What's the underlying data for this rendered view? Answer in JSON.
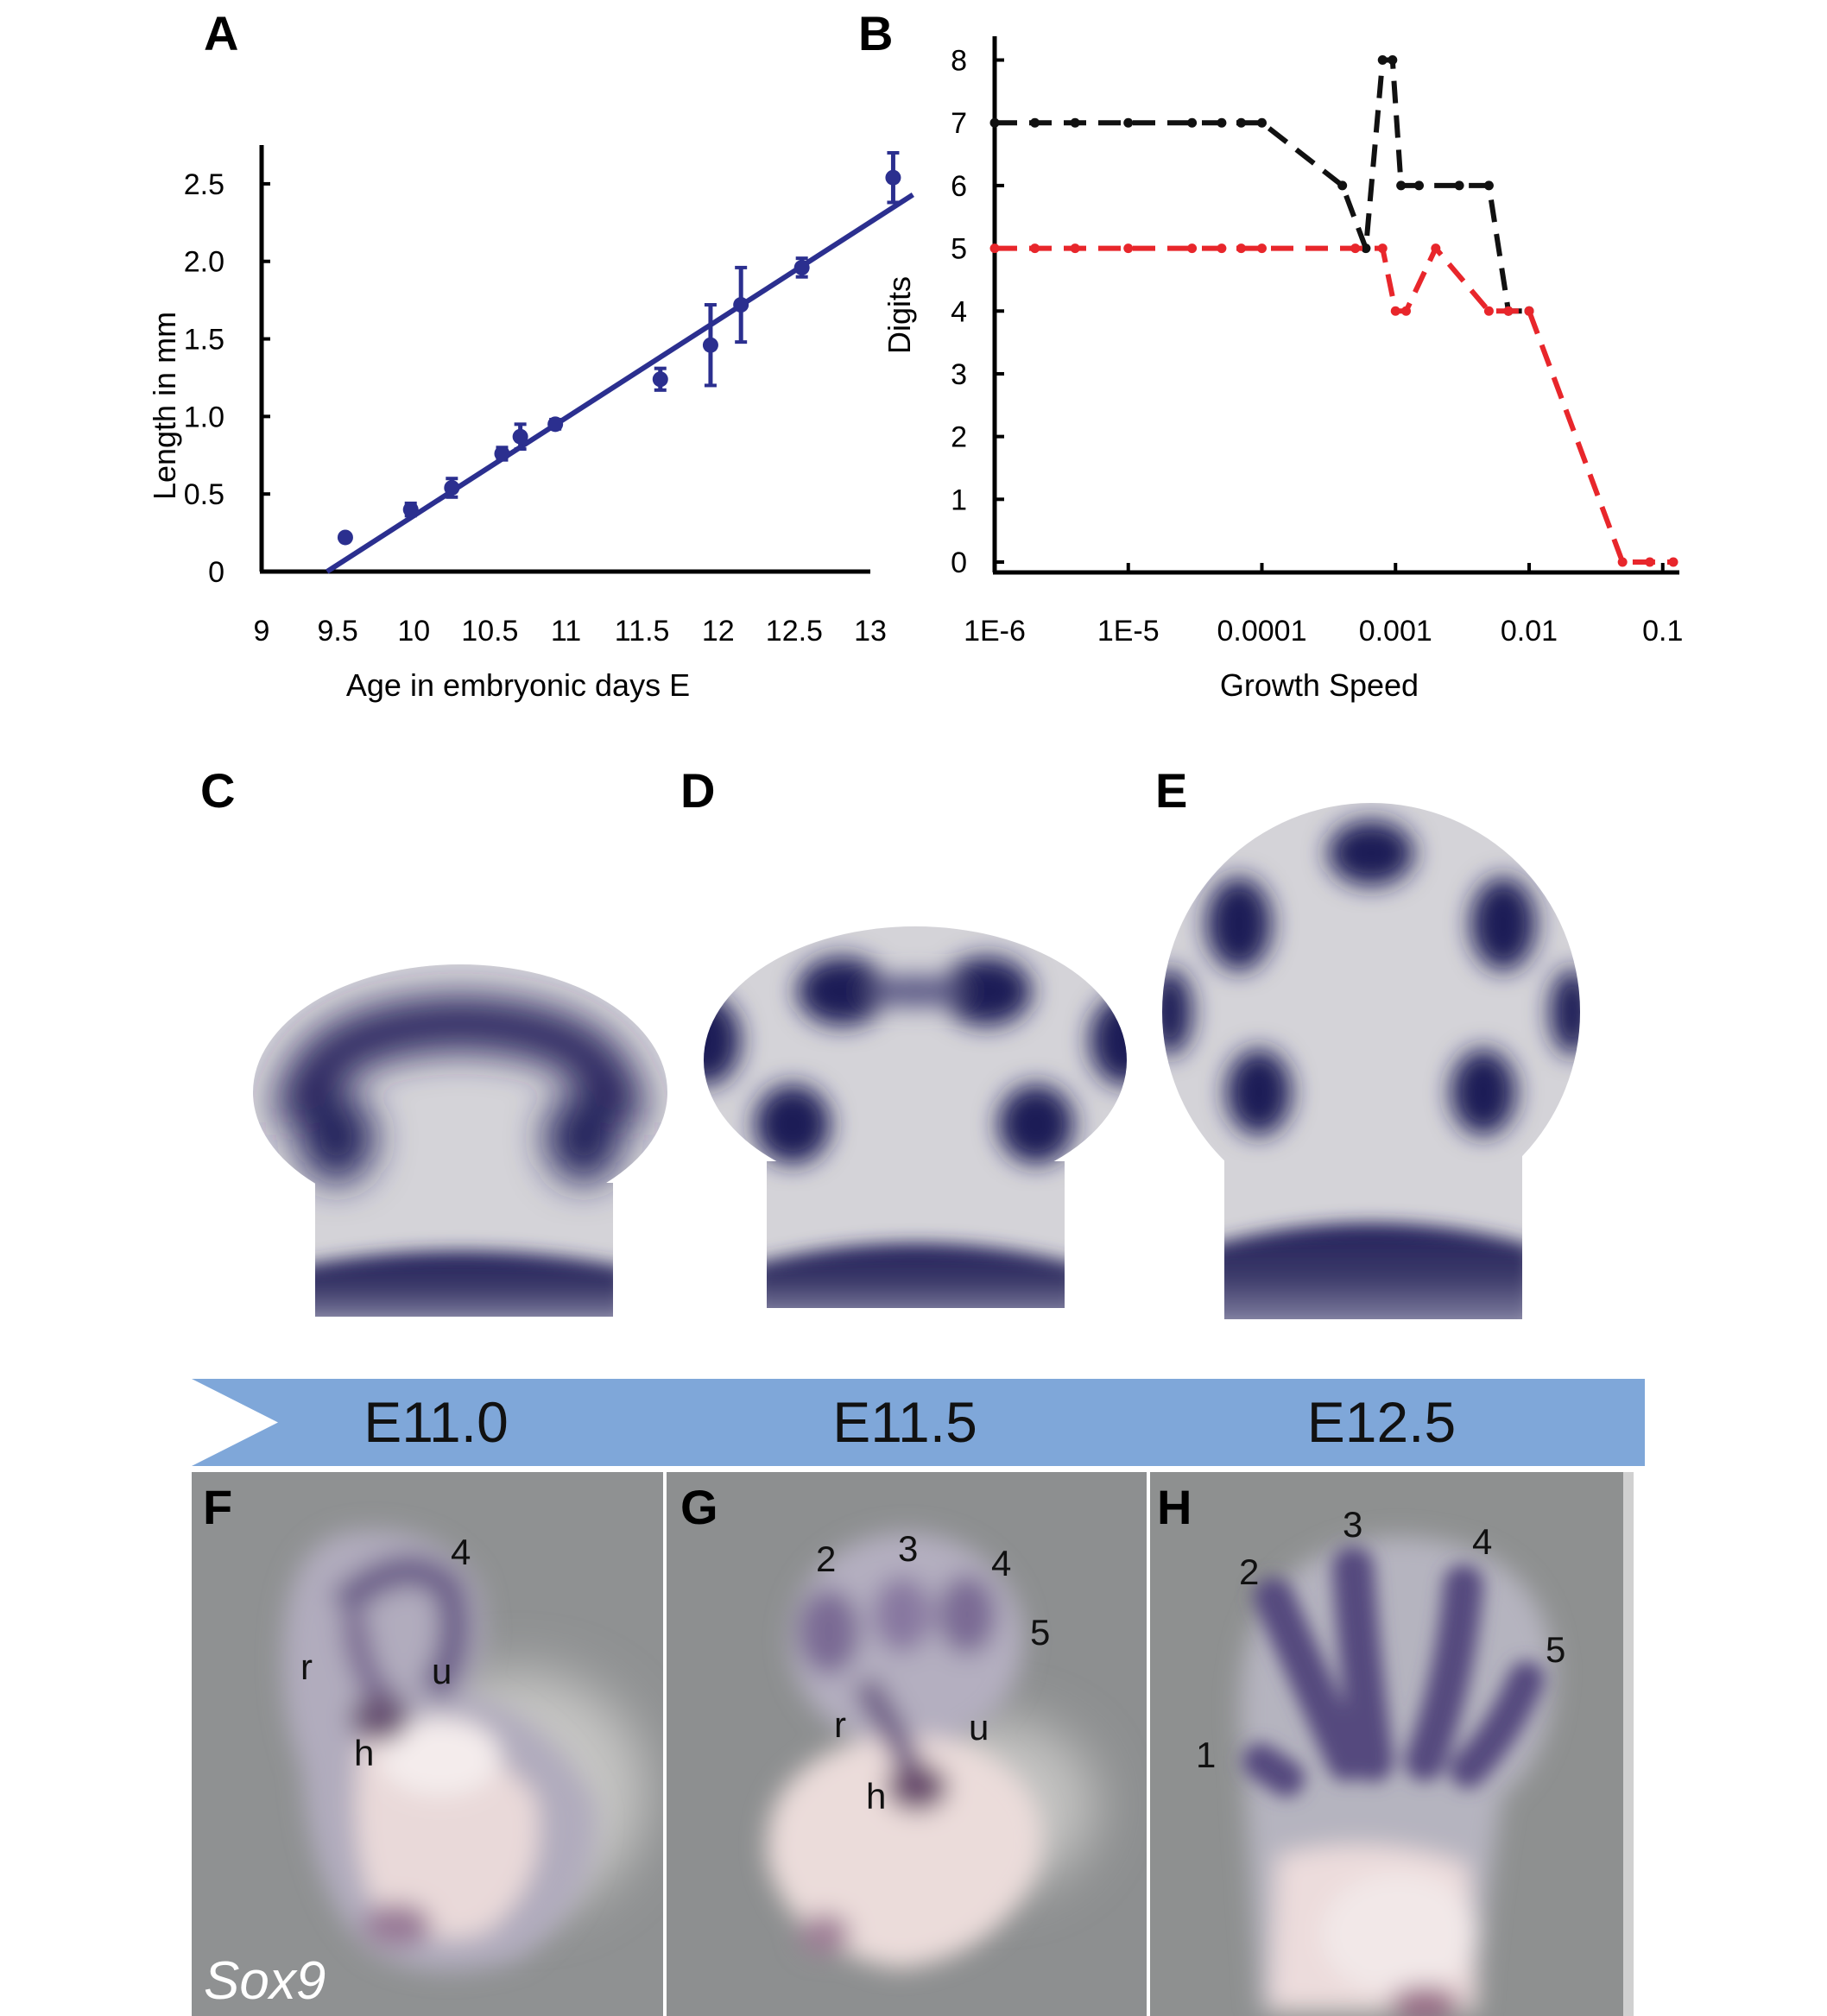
{
  "chart_data": [
    {
      "panel": "A",
      "type": "scatter",
      "xlabel": "Age in embryonic days E",
      "ylabel": "Length in mm",
      "xlim": [
        9,
        13
      ],
      "ylim": [
        0,
        2.75
      ],
      "xticks": [
        "9",
        "9.5",
        "10",
        "10.5",
        "11",
        "11.5",
        "12",
        "12.5",
        "13"
      ],
      "yticks": [
        "0",
        "0.5",
        "1.0",
        "1.5",
        "2.0",
        "2.5"
      ],
      "color": "#2b2f8f",
      "points": [
        {
          "x": 9.55,
          "y": 0.22,
          "err": 0
        },
        {
          "x": 9.98,
          "y": 0.4,
          "err": 0.04
        },
        {
          "x": 10.25,
          "y": 0.54,
          "err": 0.06
        },
        {
          "x": 10.58,
          "y": 0.76,
          "err": 0.04
        },
        {
          "x": 10.7,
          "y": 0.87,
          "err": 0.08
        },
        {
          "x": 10.93,
          "y": 0.95,
          "err": 0.03
        },
        {
          "x": 11.62,
          "y": 1.24,
          "err": 0.07
        },
        {
          "x": 11.95,
          "y": 1.46,
          "err": 0.26
        },
        {
          "x": 12.15,
          "y": 1.72,
          "err": 0.24
        },
        {
          "x": 12.55,
          "y": 1.96,
          "err": 0.06
        },
        {
          "x": 13.15,
          "y": 2.54,
          "err": 0.16
        }
      ],
      "fit": {
        "x0": 9.43,
        "y0": 0.0,
        "x1": 13.28,
        "y1": 2.43
      }
    },
    {
      "panel": "B",
      "type": "line",
      "xlabel": "Growth Speed",
      "ylabel": "Digits",
      "xscale": "log",
      "xlim": [
        1e-06,
        0.12
      ],
      "ylim": [
        0,
        8.2
      ],
      "xticks": [
        "1E-6",
        "1E-5",
        "0.0001",
        "0.001",
        "0.01",
        "0.1"
      ],
      "yticks": [
        "0",
        "1",
        "2",
        "3",
        "4",
        "5",
        "6",
        "7",
        "8"
      ],
      "series": [
        {
          "name": "black",
          "color": "#111111",
          "x": [
            1e-06,
            2e-06,
            4e-06,
            1e-05,
            3e-05,
            5e-05,
            7e-05,
            0.0001,
            0.0004,
            0.0006,
            0.0008,
            0.00095,
            0.0011,
            0.0015,
            0.003,
            0.005,
            0.007,
            0.01
          ],
          "y": [
            7,
            7,
            7,
            7,
            7,
            7,
            7,
            7,
            6,
            5,
            8,
            8,
            6,
            6,
            6,
            6,
            4,
            4
          ]
        },
        {
          "name": "red",
          "color": "#e8262b",
          "x": [
            1e-06,
            2e-06,
            4e-06,
            1e-05,
            3e-05,
            5e-05,
            7e-05,
            0.0001,
            0.0005,
            0.0008,
            0.001,
            0.0012,
            0.002,
            0.005,
            0.007,
            0.01,
            0.05,
            0.08,
            0.12
          ],
          "y": [
            5,
            5,
            5,
            5,
            5,
            5,
            5,
            5,
            5,
            5,
            4,
            4,
            5,
            4,
            4,
            4,
            0,
            0,
            0
          ]
        }
      ]
    }
  ],
  "panels": {
    "a": "A",
    "b": "B",
    "c": "C",
    "d": "D",
    "e": "E",
    "f": "F",
    "g": "G",
    "h": "H"
  },
  "timeline": {
    "stages": [
      "E11.0",
      "E11.5",
      "E12.5"
    ]
  },
  "photos": {
    "f": {
      "gene": "Sox9",
      "labels": {
        "d4": "4",
        "r": "r",
        "u": "u",
        "h": "h"
      }
    },
    "g": {
      "labels": {
        "d2": "2",
        "d3": "3",
        "d4": "4",
        "d5": "5",
        "r": "r",
        "u": "u",
        "h": "h"
      }
    },
    "h": {
      "labels": {
        "d1": "1",
        "d2": "2",
        "d3": "3",
        "d4": "4",
        "d5": "5"
      }
    }
  },
  "colors": {
    "stain": "#23215c",
    "tissue": "#d4d3d8",
    "arrow": "#7fa7d9",
    "photo_bg": "#8d8f90"
  }
}
